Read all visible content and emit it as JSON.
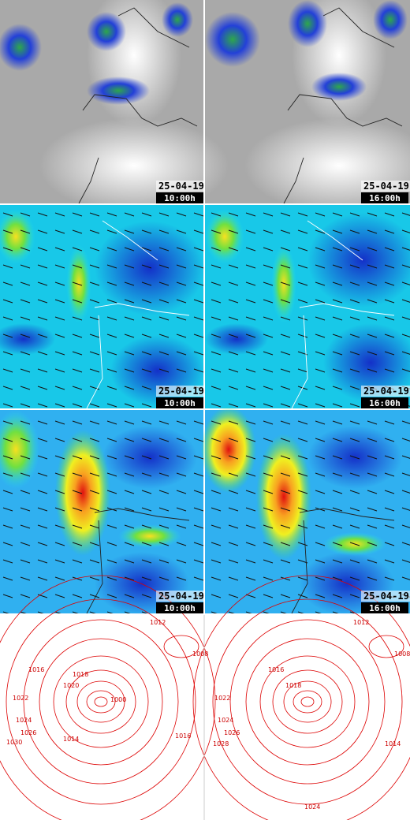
{
  "rows": [
    [
      {
        "date": "25-04-19",
        "time": "10:00h"
      },
      {
        "date": "25-04-19",
        "time": "16:00h"
      }
    ],
    [
      {
        "date": "25-04-19",
        "time": "10:00h"
      },
      {
        "date": "25-04-19",
        "time": "16:00h"
      }
    ],
    [
      {
        "date": "25-04-19",
        "time": "10:00h"
      },
      {
        "date": "25-04-19",
        "time": "16:00h"
      }
    ]
  ],
  "isobars": [
    [
      "1012",
      "1008",
      "1016",
      "1018",
      "1020",
      "1022",
      "1024",
      "1026",
      "1030",
      "1000",
      "1014",
      "1016"
    ],
    [
      "1012",
      "1008",
      "1016",
      "1018",
      "1022",
      "1024",
      "1026",
      "1028",
      "1014",
      "1024"
    ]
  ]
}
